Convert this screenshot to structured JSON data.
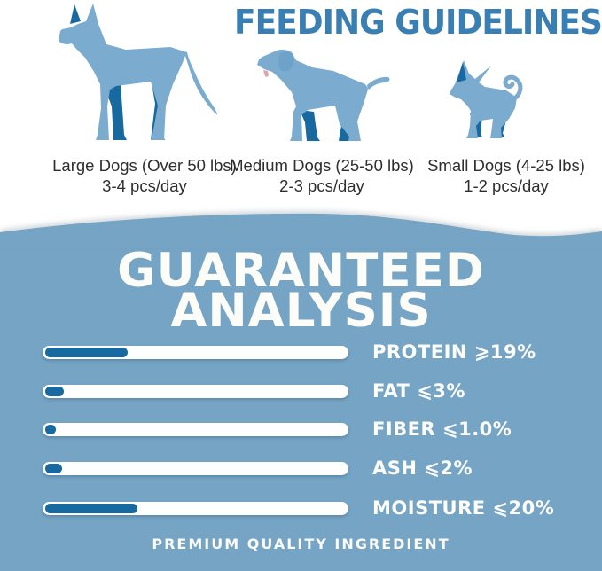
{
  "feeding": {
    "title": "FEEDING GUIDELINES",
    "groups": [
      {
        "name": "Large Dogs (Over 50 lbs)",
        "serving": "3-4 pcs/day"
      },
      {
        "name": "Medium Dogs (25-50 lbs)",
        "serving": "2-3 pcs/day"
      },
      {
        "name": "Small Dogs (4-25 lbs)",
        "serving": "1-2 pcs/day"
      }
    ]
  },
  "analysis": {
    "title_line1": "GUARANTEED",
    "title_line2": "ANALYSIS",
    "rows": [
      {
        "label": "PROTEIN",
        "value": "⩾19%",
        "fill_percent": 27
      },
      {
        "label": "FAT",
        "value": "⩽3%",
        "fill_percent": 6
      },
      {
        "label": "FIBER",
        "value": "⩽1.0%",
        "fill_percent": 3.5
      },
      {
        "label": "ASH",
        "value": "⩽2%",
        "fill_percent": 5.5
      },
      {
        "label": "MOISTURE",
        "value": "⩽20%",
        "fill_percent": 30
      }
    ],
    "footer": "PREMIUM QUALITY INGREDIENT"
  },
  "chart_data": {
    "type": "bar",
    "orientation": "horizontal",
    "title": "GUARANTEED ANALYSIS",
    "categories": [
      "PROTEIN",
      "FAT",
      "FIBER",
      "ASH",
      "MOISTURE"
    ],
    "values": [
      19,
      3,
      1.0,
      2,
      20
    ],
    "qualifiers": [
      "≥",
      "≤",
      "≤",
      "≤",
      "≤"
    ],
    "unit": "%",
    "bar_fill_fraction_of_track": [
      0.27,
      0.06,
      0.035,
      0.055,
      0.3
    ],
    "xlabel": "",
    "ylabel": "",
    "legend": "none",
    "grid": false
  },
  "icons": {
    "large_dog": "great-dane-silhouette",
    "medium_dog": "labrador-silhouette",
    "small_dog": "chihuahua-silhouette"
  },
  "colors": {
    "accent_blue": "#3a7fb4",
    "section_blue": "#75a4c5",
    "bar_fill_blue": "#17699f",
    "dog_light_blue": "#7bacd0",
    "dog_dark_blue": "#17699f",
    "text_dark": "#2e2e2e",
    "white": "#ffffff"
  }
}
